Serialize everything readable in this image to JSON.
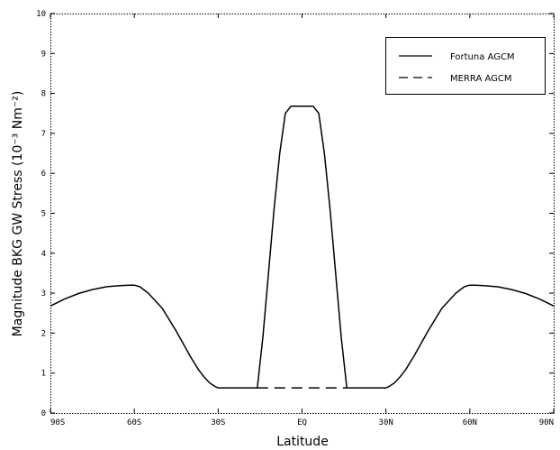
{
  "chart_data": {
    "type": "line",
    "xlabel": "Latitude",
    "ylabel": "Magnitude BKG GW Stress (10⁻³ Nm⁻²)",
    "xlim": [
      -90,
      90
    ],
    "ylim": [
      0,
      10
    ],
    "x_ticks": [
      -90,
      -60,
      -30,
      0,
      30,
      60,
      90
    ],
    "x_tick_labels": [
      "90S",
      "60S",
      "30S",
      "EQ",
      "30N",
      "60N",
      "90N"
    ],
    "y_ticks": [
      0,
      1,
      2,
      3,
      4,
      5,
      6,
      7,
      8,
      9,
      10
    ],
    "y_tick_labels": [
      "0",
      "1",
      "2",
      "3",
      "4",
      "5",
      "6",
      "7",
      "8",
      "9",
      "10"
    ],
    "grid": false,
    "legend_position": "top-right",
    "series": [
      {
        "name": "Fortuna AGCM",
        "style": "solid",
        "x": [
          -90,
          -85,
          -80,
          -75,
          -70,
          -65,
          -62,
          -60,
          -58,
          -55,
          -50,
          -45,
          -40,
          -37,
          -35,
          -33,
          -31,
          -30,
          -20,
          -16,
          -14,
          -12,
          -10,
          -8,
          -6,
          -4,
          -2,
          0,
          2,
          4,
          6,
          8,
          10,
          12,
          14,
          16,
          20,
          30,
          31,
          33,
          35,
          37,
          40,
          45,
          50,
          55,
          58,
          60,
          62,
          65,
          70,
          75,
          80,
          85,
          90
        ],
        "y": [
          2.68,
          2.85,
          2.99,
          3.09,
          3.16,
          3.19,
          3.2,
          3.2,
          3.16,
          3.0,
          2.62,
          2.05,
          1.42,
          1.08,
          0.9,
          0.75,
          0.66,
          0.63,
          0.63,
          0.63,
          1.9,
          3.5,
          5.1,
          6.5,
          7.5,
          7.68,
          7.68,
          7.68,
          7.68,
          7.68,
          7.5,
          6.5,
          5.1,
          3.5,
          1.9,
          0.63,
          0.63,
          0.63,
          0.66,
          0.75,
          0.9,
          1.08,
          1.42,
          2.05,
          2.62,
          3.0,
          3.16,
          3.2,
          3.2,
          3.19,
          3.16,
          3.09,
          2.99,
          2.85,
          2.68
        ]
      },
      {
        "name": "MERRA AGCM",
        "style": "dashed",
        "x": [
          -16,
          16
        ],
        "y": [
          0.63,
          0.63
        ]
      }
    ]
  }
}
